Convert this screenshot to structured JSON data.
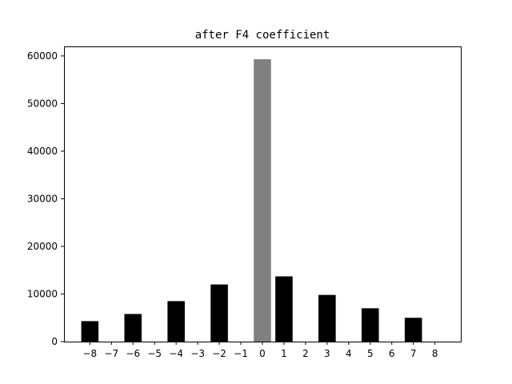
{
  "chart_data": {
    "type": "bar",
    "title": "after F4 coefficient",
    "xlabel": "",
    "ylabel": "",
    "categories": [
      "−8",
      "−7",
      "−6",
      "−5",
      "−4",
      "−3",
      "−2",
      "−1",
      "0",
      "1",
      "2",
      "3",
      "4",
      "5",
      "6",
      "7",
      "8"
    ],
    "x": [
      -8,
      -7,
      -6,
      -5,
      -4,
      -3,
      -2,
      -1,
      0,
      1,
      2,
      3,
      4,
      5,
      6,
      7,
      8
    ],
    "values": [
      4300,
      0,
      5800,
      0,
      8500,
      0,
      12000,
      0,
      59300,
      13700,
      0,
      9800,
      0,
      7000,
      0,
      5000,
      0
    ],
    "bar_colors": {
      "-8": "#000000",
      "-7": "#000000",
      "-6": "#000000",
      "-5": "#000000",
      "-4": "#000000",
      "-3": "#000000",
      "-2": "#000000",
      "-1": "#000000",
      "0": "#808080",
      "1": "#000000",
      "2": "#000000",
      "3": "#000000",
      "4": "#000000",
      "5": "#000000",
      "6": "#000000",
      "7": "#000000",
      "8": "#000000"
    },
    "ylim": [
      0,
      62000
    ],
    "xlim": [
      -9.2,
      9.2
    ],
    "yticks": [
      0,
      10000,
      20000,
      30000,
      40000,
      50000,
      60000
    ],
    "ytick_labels": [
      "0",
      "10000",
      "20000",
      "30000",
      "40000",
      "50000",
      "60000"
    ],
    "grid": false,
    "legend": "none"
  }
}
